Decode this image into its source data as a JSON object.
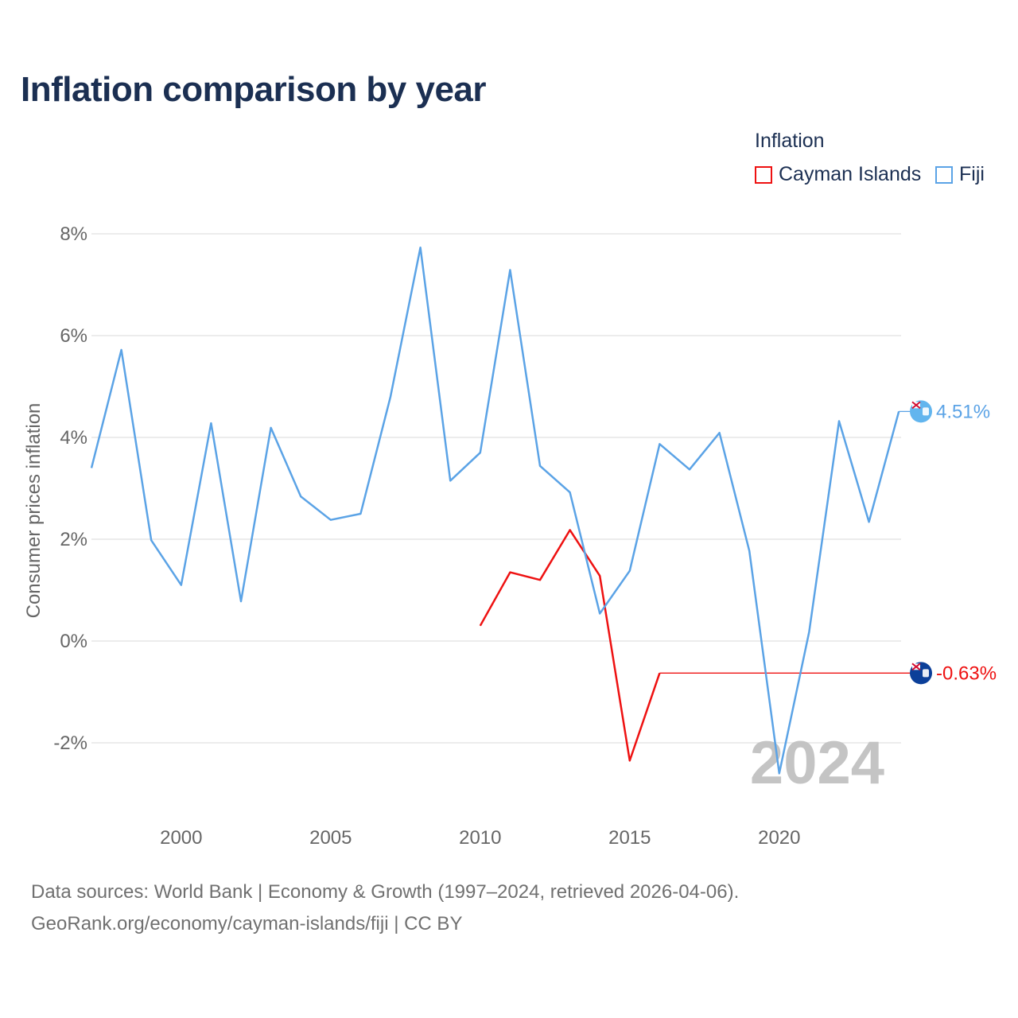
{
  "title": "Inflation comparison by year",
  "legend": {
    "title": "Inflation",
    "items": [
      {
        "label": "Cayman Islands",
        "color": "#ee1111"
      },
      {
        "label": "Fiji",
        "color": "#5ba3e6"
      }
    ]
  },
  "footer": {
    "line1": "Data sources: World Bank | Economy & Growth (1997–2024, retrieved 2026-04-06).",
    "line2": "GeoRank.org/economy/cayman-islands/fiji | CC BY"
  },
  "chart_data": {
    "type": "line",
    "title": "Inflation comparison by year",
    "xlabel": "",
    "ylabel": "Consumer prices inflation",
    "xlim": [
      1997,
      2024
    ],
    "ylim": [
      -3,
      8
    ],
    "y_ticks": [
      -2,
      0,
      2,
      4,
      6,
      8
    ],
    "y_tick_labels": [
      "-2%",
      "0%",
      "2%",
      "4%",
      "6%",
      "8%"
    ],
    "x_ticks": [
      2000,
      2005,
      2010,
      2015,
      2020
    ],
    "x_tick_labels": [
      "2000",
      "2005",
      "2010",
      "2015",
      "2020"
    ],
    "year_watermark": "2024",
    "grid": true,
    "series": [
      {
        "name": "Cayman Islands",
        "color": "#ee1111",
        "x": [
          2010,
          2011,
          2012,
          2013,
          2014,
          2015,
          2016
        ],
        "values": [
          0.3,
          1.35,
          1.2,
          2.18,
          1.28,
          -2.35,
          -0.63
        ],
        "extend_to": 2024,
        "end_label": "-0.63%",
        "end_value": -0.63
      },
      {
        "name": "Fiji",
        "color": "#5ba3e6",
        "x": [
          1997,
          1998,
          1999,
          2000,
          2001,
          2002,
          2003,
          2004,
          2005,
          2006,
          2007,
          2008,
          2009,
          2010,
          2011,
          2012,
          2013,
          2014,
          2015,
          2016,
          2017,
          2018,
          2019,
          2020,
          2021,
          2022,
          2023,
          2024
        ],
        "values": [
          3.4,
          5.72,
          1.98,
          1.1,
          4.28,
          0.78,
          4.19,
          2.84,
          2.38,
          2.5,
          4.8,
          7.73,
          3.15,
          3.7,
          7.29,
          3.44,
          2.92,
          0.54,
          1.38,
          3.87,
          3.37,
          4.09,
          1.77,
          -2.6,
          0.18,
          4.32,
          2.34,
          4.51
        ],
        "end_label": "4.51%",
        "end_value": 4.51
      }
    ]
  }
}
